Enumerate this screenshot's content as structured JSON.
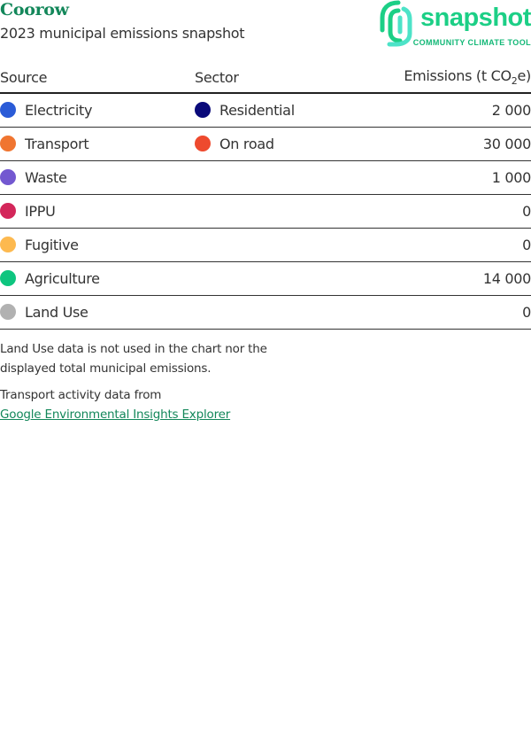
{
  "header": {
    "title": "Coorow",
    "subtitle": "2023 municipal emissions snapshot"
  },
  "logo": {
    "name": "snapshot",
    "tagline": "COMMUNITY CLIMATE TOOL",
    "color": "#1ccf86"
  },
  "table": {
    "headers": {
      "source": "Source",
      "sector": "Sector",
      "emissions": "Emissions (t CO",
      "emissions_sub": "2",
      "emissions_end": "e)"
    },
    "rows": [
      {
        "source": "Electricity",
        "source_color": "#2a5bd7",
        "sector": "Residential",
        "sector_color": "#0a0a7a",
        "emissions": "2 000"
      },
      {
        "source": "Transport",
        "source_color": "#f07530",
        "sector": "On road",
        "sector_color": "#ee4a2e",
        "emissions": "30 000"
      },
      {
        "source": "Waste",
        "source_color": "#7358d0",
        "sector": "",
        "sector_color": "",
        "emissions": "1 000"
      },
      {
        "source": "IPPU",
        "source_color": "#d3265a",
        "sector": "",
        "sector_color": "",
        "emissions": "0"
      },
      {
        "source": "Fugitive",
        "source_color": "#fdb94f",
        "sector": "",
        "sector_color": "",
        "emissions": "0"
      },
      {
        "source": "Agriculture",
        "source_color": "#0ec57f",
        "sector": "",
        "sector_color": "",
        "emissions": "14 000"
      },
      {
        "source": "Land Use",
        "source_color": "#b1b1b1",
        "sector": "",
        "sector_color": "",
        "emissions": "0"
      }
    ]
  },
  "notes": {
    "land_use_line1": "Land Use data is not used in the chart nor the",
    "land_use_line2": "displayed total municipal emissions.",
    "transport": "Transport activity data from",
    "link": "Google Environmental Insights Explorer"
  }
}
